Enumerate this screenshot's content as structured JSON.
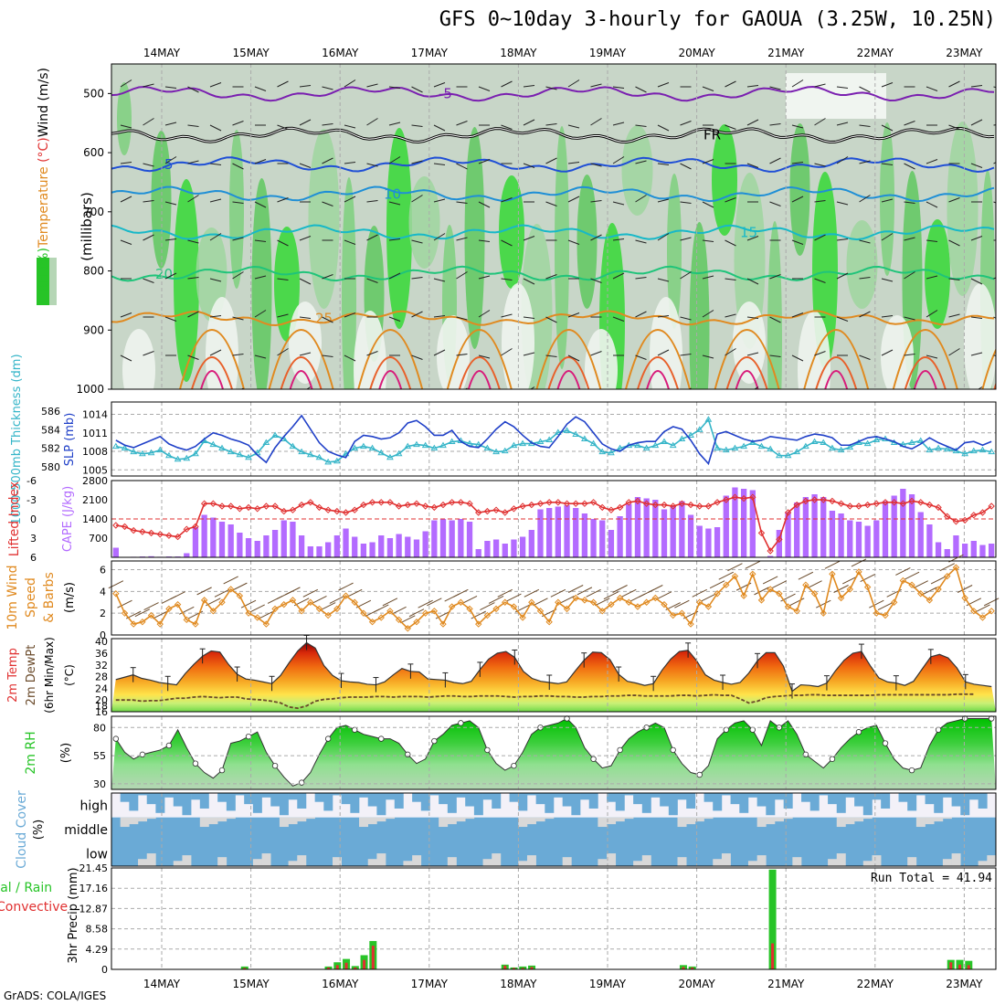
{
  "title": "GFS 0~10day 3-hourly for GAOUA (3.25W, 10.25N)",
  "footer": "GrADS: COLA/IGES",
  "colors": {
    "frame": "#000000",
    "grid": "#aaaaaa",
    "cape": "#b36bff",
    "li": "#e03030",
    "thickness": "#35b5c8",
    "slp": "#2040c8",
    "wind": "#e08a20",
    "dewpt": "#6a4a2a",
    "rh_fill": "#27c427",
    "cloud": "#6aaad6",
    "cloud_clear": "#d8d8d8",
    "precip_total": "#27c427",
    "precip_conv": "#e03030"
  },
  "chart_data": [
    {
      "name": "upper-air",
      "type": "heatmap",
      "xlabels": [
        "14MAY",
        "15MAY",
        "16MAY",
        "17MAY",
        "18MAY",
        "19MAY",
        "20MAY",
        "21MAY",
        "22MAY",
        "23MAY"
      ],
      "ylabel_parts": [
        {
          "text": "RH (%)",
          "color": "#27c427"
        },
        {
          "text": "Temperature",
          "color": "#e08a20"
        },
        {
          "text": " (°C)",
          "color": "#e03030"
        },
        {
          "text": "Wind (m/s)",
          "color": "#000000"
        }
      ],
      "ylabel2": "(millibars)",
      "yticks": [
        500,
        600,
        700,
        800,
        900,
        1000
      ],
      "ylim": [
        1000,
        450
      ],
      "isotherms": [
        {
          "label": "-5",
          "p": 500,
          "color": "#7a1fb0"
        },
        {
          "label": "FR",
          "p": 570,
          "color": "#000000"
        },
        {
          "label": "5",
          "p": 620,
          "color": "#1f4fd6"
        },
        {
          "label": "10",
          "p": 670,
          "color": "#1f8fd6"
        },
        {
          "label": "15",
          "p": 735,
          "color": "#17b8c8"
        },
        {
          "label": "20",
          "p": 805,
          "color": "#1fc47a"
        },
        {
          "label": "25",
          "p": 880,
          "color": "#e08a20"
        }
      ]
    },
    {
      "name": "slp-thickness",
      "type": "line",
      "ylabel_left": "1000-500mb Thickness (dm)",
      "ylabel_right": "SLP (mb)",
      "yticks_left": [
        580,
        582,
        584,
        586
      ],
      "yticks_right": [
        1005,
        1008,
        1011,
        1014
      ],
      "thickness": [
        582.2,
        582.0,
        581.6,
        581.4,
        581.5,
        581.8,
        581.2,
        580.8,
        580.9,
        581.4,
        582.8,
        582.4,
        582.0,
        581.6,
        581.3,
        581.0,
        581.5,
        582.6,
        583.4,
        583.0,
        582.2,
        581.6,
        581.3,
        581.0,
        580.5,
        580.6,
        581.4,
        582.0,
        582.2,
        582.0,
        581.5,
        581.0,
        581.4,
        582.2,
        582.4,
        582.3,
        582.0,
        582.3,
        582.7,
        582.8,
        582.5,
        582.4,
        582.0,
        581.6,
        581.7,
        582.3,
        582.5,
        582.5,
        582.7,
        582.9,
        583.7,
        583.9,
        583.5,
        583.0,
        582.5,
        581.6,
        581.5,
        582.0,
        582.3,
        582.3,
        582.0,
        582.3,
        582.7,
        582.3,
        583.0,
        583.4,
        584.0,
        585.1,
        582.0,
        581.8,
        582.0,
        582.2,
        582.6,
        582.2,
        581.9,
        581.2,
        581.2,
        581.6,
        582.2,
        582.7,
        582.6,
        582.0,
        581.8,
        582.1,
        582.6,
        582.5,
        582.9,
        583.0,
        582.6,
        582.4,
        582.6,
        582.8,
        581.8,
        582.0,
        581.9,
        581.7,
        581.4,
        581.7,
        581.8,
        581.6
      ],
      "slp": [
        1009.8,
        1009.0,
        1008.6,
        1009.2,
        1009.8,
        1010.4,
        1009.2,
        1008.6,
        1008.2,
        1008.8,
        1010.0,
        1011.0,
        1010.6,
        1010.0,
        1009.6,
        1009.0,
        1007.4,
        1006.2,
        1008.6,
        1010.4,
        1012.0,
        1013.8,
        1011.6,
        1009.4,
        1008.0,
        1007.4,
        1007.0,
        1009.6,
        1010.6,
        1010.4,
        1010.0,
        1010.2,
        1011.0,
        1012.6,
        1013.0,
        1012.0,
        1010.6,
        1010.6,
        1011.4,
        1009.6,
        1008.8,
        1008.6,
        1010.0,
        1011.6,
        1012.8,
        1012.0,
        1010.6,
        1009.4,
        1008.8,
        1008.6,
        1010.4,
        1012.4,
        1013.6,
        1012.8,
        1011.0,
        1009.2,
        1008.4,
        1008.0,
        1009.0,
        1009.4,
        1009.6,
        1009.6,
        1011.2,
        1012.0,
        1011.6,
        1009.8,
        1007.6,
        1006.0,
        1010.8,
        1011.2,
        1010.6,
        1010.0,
        1009.6,
        1009.8,
        1010.4,
        1010.2,
        1010.0,
        1009.8,
        1010.4,
        1010.8,
        1010.6,
        1010.2,
        1009.0,
        1009.0,
        1009.6,
        1010.2,
        1010.4,
        1010.0,
        1009.6,
        1008.8,
        1008.4,
        1009.2,
        1010.2,
        1009.4,
        1008.8,
        1008.2,
        1009.4,
        1009.6,
        1009.0,
        1009.6
      ]
    },
    {
      "name": "cape-li",
      "type": "bar",
      "ylabel_left": "Lifted Index",
      "ylabel_right": "CAPE (J/kg)",
      "yticks_left": [
        -6,
        -3,
        0,
        3,
        6
      ],
      "yticks_left_labels": [
        "-6",
        "-3",
        "0",
        "3",
        "6"
      ],
      "yticks_right": [
        700,
        1400,
        2100,
        2800
      ],
      "cape": [
        350,
        0,
        20,
        30,
        40,
        20,
        30,
        30,
        150,
        1100,
        1550,
        1450,
        1300,
        1200,
        900,
        700,
        600,
        800,
        1000,
        1350,
        1300,
        800,
        400,
        400,
        550,
        800,
        1050,
        750,
        500,
        550,
        800,
        700,
        850,
        750,
        650,
        950,
        1350,
        1400,
        1350,
        1400,
        1300,
        300,
        600,
        650,
        500,
        650,
        750,
        1000,
        1750,
        1800,
        1850,
        1900,
        1800,
        1600,
        1400,
        1350,
        1000,
        1500,
        1950,
        2200,
        2150,
        2100,
        1750,
        1900,
        2050,
        1550,
        1150,
        1050,
        1100,
        2250,
        2550,
        2500,
        2450,
        0,
        50,
        1000,
        1650,
        2000,
        2200,
        2300,
        2200,
        1700,
        1600,
        1350,
        1300,
        1150,
        1350,
        2050,
        2250,
        2500,
        2300,
        1650,
        1200,
        550,
        300,
        800,
        500,
        600,
        450,
        500
      ],
      "li": [
        1.0,
        1.2,
        1.8,
        2.0,
        2.2,
        2.4,
        2.6,
        2.8,
        1.6,
        1.2,
        -2.4,
        -2.4,
        -2.0,
        -2.0,
        -1.6,
        -1.8,
        -1.6,
        -2.0,
        -2.0,
        -1.2,
        -1.4,
        -2.2,
        -2.6,
        -1.8,
        -1.4,
        -1.2,
        -1.0,
        -1.4,
        -2.2,
        -2.6,
        -2.6,
        -2.6,
        -2.0,
        -2.2,
        -2.4,
        -2.0,
        -1.8,
        -2.2,
        -2.6,
        -2.6,
        -2.4,
        -1.0,
        -1.2,
        -1.4,
        -1.0,
        -1.6,
        -2.0,
        -2.2,
        -2.4,
        -2.6,
        -2.6,
        -2.4,
        -2.4,
        -2.4,
        -2.6,
        -1.8,
        -1.4,
        -1.8,
        -2.6,
        -2.8,
        -2.4,
        -2.2,
        -2.2,
        -2.0,
        -2.4,
        -2.2,
        -2.0,
        -2.0,
        -2.6,
        -3.0,
        -3.4,
        -3.2,
        -3.4,
        2.2,
        5.0,
        3.2,
        -1.0,
        -2.2,
        -2.8,
        -3.0,
        -3.0,
        -2.8,
        -2.4,
        -2.0,
        -2.0,
        -2.2,
        -2.4,
        -2.6,
        -2.6,
        -2.4,
        -2.8,
        -2.6,
        -2.2,
        -1.8,
        -0.4,
        0.4,
        0.2,
        -0.6,
        -1.0,
        -2.0
      ]
    },
    {
      "name": "wind-10m",
      "type": "line",
      "ylabel": [
        "10m Wind",
        "Speed",
        "& Barbs",
        "(m/s)"
      ],
      "yticks": [
        0,
        2,
        4,
        6
      ],
      "speed": [
        3.8,
        2.0,
        1.0,
        1.2,
        1.8,
        1.0,
        2.4,
        2.8,
        1.4,
        1.0,
        3.2,
        2.2,
        3.0,
        4.2,
        3.6,
        2.0,
        1.6,
        1.0,
        2.4,
        2.8,
        3.2,
        2.2,
        3.0,
        2.4,
        1.8,
        2.4,
        3.6,
        3.0,
        2.0,
        1.2,
        1.6,
        2.2,
        1.4,
        0.6,
        1.2,
        2.0,
        2.2,
        1.0,
        2.6,
        3.0,
        2.4,
        1.0,
        1.8,
        2.4,
        3.0,
        2.6,
        1.6,
        3.0,
        2.2,
        1.2,
        3.0,
        2.4,
        3.4,
        3.2,
        3.0,
        2.2,
        2.8,
        3.4,
        3.0,
        2.6,
        3.0,
        3.4,
        2.8,
        1.8,
        2.0,
        1.0,
        3.0,
        2.6,
        3.8,
        4.6,
        5.4,
        3.6,
        5.6,
        3.2,
        4.2,
        3.8,
        2.6,
        2.2,
        4.6,
        3.8,
        2.0,
        5.6,
        3.4,
        4.2,
        5.8,
        4.4,
        2.0,
        1.8,
        3.0,
        5.0,
        4.6,
        3.8,
        3.2,
        4.2,
        5.4,
        6.2,
        3.4,
        2.2,
        1.6,
        2.2
      ]
    },
    {
      "name": "temp-2m",
      "type": "area",
      "ylabel": [
        "2m Temp",
        "2m DewPt",
        "(6hr Min/Max)",
        "(°C)"
      ],
      "yticks": [
        16,
        18,
        20,
        24,
        28,
        32,
        36,
        40
      ],
      "ylabels": [
        "16",
        "18",
        "20",
        "24",
        "28",
        "32",
        "36",
        "40"
      ],
      "ylim": [
        16,
        40
      ],
      "temp": [
        27.0,
        27.8,
        28.6,
        27.4,
        26.8,
        26.0,
        25.6,
        25.2,
        29.0,
        32.2,
        35.0,
        36.8,
        36.4,
        32.2,
        28.8,
        27.2,
        26.8,
        26.2,
        25.6,
        28.4,
        32.8,
        36.8,
        39.6,
        37.8,
        31.8,
        28.4,
        26.6,
        26.2,
        26.0,
        25.4,
        25.2,
        26.2,
        28.6,
        30.8,
        29.8,
        29.6,
        27.2,
        27.0,
        26.8,
        26.0,
        25.6,
        26.4,
        30.4,
        34.0,
        36.0,
        36.6,
        34.6,
        29.8,
        27.4,
        26.4,
        26.0,
        25.6,
        26.2,
        30.0,
        33.6,
        36.4,
        36.2,
        33.8,
        28.8,
        26.4,
        25.8,
        25.0,
        25.6,
        30.2,
        34.0,
        36.6,
        37.0,
        33.4,
        28.6,
        26.8,
        26.0,
        25.4,
        26.0,
        29.2,
        33.4,
        36.2,
        36.2,
        31.6,
        23.0,
        25.2,
        25.0,
        24.6,
        25.8,
        30.0,
        33.6,
        36.0,
        36.6,
        31.8,
        27.6,
        26.2,
        25.8,
        25.0,
        26.4,
        30.6,
        34.8,
        35.6,
        34.4,
        31.0,
        26.2,
        25.4,
        25.0,
        24.6
      ],
      "dewpt": [
        20.0,
        20.0,
        20.0,
        19.6,
        19.8,
        19.8,
        20.2,
        20.6,
        20.6,
        21.0,
        21.2,
        21.0,
        20.8,
        21.0,
        21.0,
        20.4,
        20.2,
        20.0,
        19.6,
        19.0,
        17.6,
        17.2,
        18.0,
        19.6,
        20.2,
        20.4,
        20.8,
        21.0,
        21.0,
        21.0,
        21.2,
        21.2,
        21.0,
        21.2,
        21.2,
        21.2,
        21.0,
        21.2,
        21.4,
        21.4,
        21.2,
        21.2,
        21.4,
        21.4,
        21.4,
        21.2,
        21.0,
        21.2,
        21.2,
        21.4,
        21.4,
        21.2,
        21.2,
        21.0,
        21.0,
        21.2,
        21.2,
        21.4,
        21.4,
        21.6,
        21.6,
        21.4,
        21.4,
        21.4,
        21.4,
        21.6,
        21.6,
        21.4,
        21.6,
        21.8,
        21.6,
        21.6,
        20.4,
        19.0,
        19.6,
        20.8,
        21.2,
        21.4,
        21.6,
        21.6,
        21.8,
        21.8,
        21.6,
        21.6,
        21.6,
        21.6,
        21.6,
        21.6,
        21.8,
        21.8,
        21.8,
        21.8,
        21.8,
        21.8,
        21.8,
        21.8,
        21.8,
        22.0,
        22.0,
        22.0
      ]
    },
    {
      "name": "rh-2m",
      "type": "area",
      "ylabel": [
        "2m RH",
        "(%)"
      ],
      "yticks": [
        30,
        55,
        80
      ],
      "ylim": [
        25,
        90
      ],
      "rh": [
        70,
        58,
        52,
        56,
        58,
        60,
        64,
        78,
        62,
        48,
        40,
        35,
        42,
        66,
        68,
        72,
        76,
        58,
        46,
        36,
        28,
        31,
        40,
        56,
        70,
        80,
        82,
        78,
        74,
        72,
        70,
        70,
        66,
        56,
        48,
        52,
        68,
        74,
        82,
        84,
        86,
        80,
        60,
        48,
        42,
        46,
        58,
        74,
        80,
        82,
        84,
        88,
        80,
        62,
        52,
        44,
        46,
        60,
        70,
        76,
        80,
        84,
        80,
        60,
        48,
        40,
        38,
        46,
        70,
        78,
        84,
        86,
        78,
        64,
        86,
        80,
        86,
        74,
        56,
        50,
        44,
        52,
        62,
        70,
        76,
        80,
        82,
        66,
        52,
        44,
        42,
        44,
        64,
        78,
        84,
        86,
        88,
        88,
        88,
        88
      ]
    },
    {
      "name": "cloud-cover",
      "type": "heatmap",
      "ylabel": "Cloud Cover",
      "unit": "(%)",
      "levels": [
        "high",
        "middle",
        "low"
      ]
    },
    {
      "name": "precip",
      "type": "bar",
      "ylabel_left": [
        "Total / Rain",
        "Convective"
      ],
      "ylabel_unit": "3hr Precip (mm)",
      "yticks": [
        0,
        4.29,
        8.58,
        12.87,
        17.16,
        21.45
      ],
      "ylabels": [
        "0",
        "4.29",
        "8.58",
        "12.87",
        "17.16",
        "21.45"
      ],
      "ylim": [
        0,
        21.45
      ],
      "annotation": "Run Total = 41.94",
      "total": [
        0,
        0,
        0,
        0,
        0,
        0,
        0,
        0,
        0,
        0,
        0,
        0,
        0,
        0,
        0,
        0.5,
        0.2,
        0,
        0,
        0,
        0,
        0,
        0,
        0,
        0,
        0,
        0,
        0,
        0,
        0,
        0,
        0,
        0,
        0,
        0,
        0,
        0,
        0,
        0,
        0,
        0,
        0,
        0.5,
        1.5,
        2.2,
        0.5,
        3.0,
        6.0,
        0,
        0,
        0,
        0,
        0,
        0,
        0,
        0,
        0,
        0,
        0,
        0,
        0,
        0,
        0,
        0.3,
        0,
        0,
        0,
        0,
        0,
        0,
        0,
        0,
        0.2,
        0.2,
        0,
        0,
        0,
        0,
        0,
        0,
        0,
        0,
        0,
        0,
        1.0,
        0.3,
        0.5,
        0.8,
        0,
        0,
        0,
        0,
        0.2,
        0,
        0,
        0,
        0,
        0,
        0,
        0,
        0,
        0,
        0,
        0,
        0,
        0,
        0,
        0.2,
        0,
        0,
        0,
        0,
        0,
        0,
        0,
        0,
        0,
        0,
        0,
        0,
        0,
        0,
        0,
        0,
        0,
        0,
        0,
        0,
        0,
        0,
        0,
        0,
        0,
        0,
        0,
        0,
        0,
        0,
        0,
        0,
        0,
        0,
        0,
        0,
        0,
        0,
        0,
        0,
        0,
        0,
        0,
        0,
        0,
        0,
        0,
        0,
        0,
        0
      ],
      "bars": [
        {
          "day": 0.93,
          "total": 0.6,
          "conv": 0.3
        },
        {
          "day": 1.87,
          "total": 0.6,
          "conv": 0.4
        },
        {
          "day": 1.97,
          "total": 1.5,
          "conv": 0.9
        },
        {
          "day": 2.07,
          "total": 2.2,
          "conv": 1.4
        },
        {
          "day": 2.17,
          "total": 0.7,
          "conv": 0.4
        },
        {
          "day": 2.27,
          "total": 3.0,
          "conv": 2.0
        },
        {
          "day": 2.37,
          "total": 6.0,
          "conv": 5.0
        },
        {
          "day": 3.85,
          "total": 1.0,
          "conv": 0.8
        },
        {
          "day": 3.95,
          "total": 0.4,
          "conv": 0.3
        },
        {
          "day": 4.05,
          "total": 0.6,
          "conv": 0.3
        },
        {
          "day": 4.15,
          "total": 0.8,
          "conv": 0.5
        },
        {
          "day": 5.85,
          "total": 0.9,
          "conv": 0.5
        },
        {
          "day": 5.95,
          "total": 0.6,
          "conv": 0.4
        },
        {
          "day": 6.85,
          "total": 21.1,
          "conv": 5.5
        },
        {
          "day": 8.85,
          "total": 2.0,
          "conv": 1.5
        },
        {
          "day": 8.95,
          "total": 2.0,
          "conv": 1.0
        },
        {
          "day": 9.05,
          "total": 1.8,
          "conv": 0.9
        }
      ]
    }
  ]
}
